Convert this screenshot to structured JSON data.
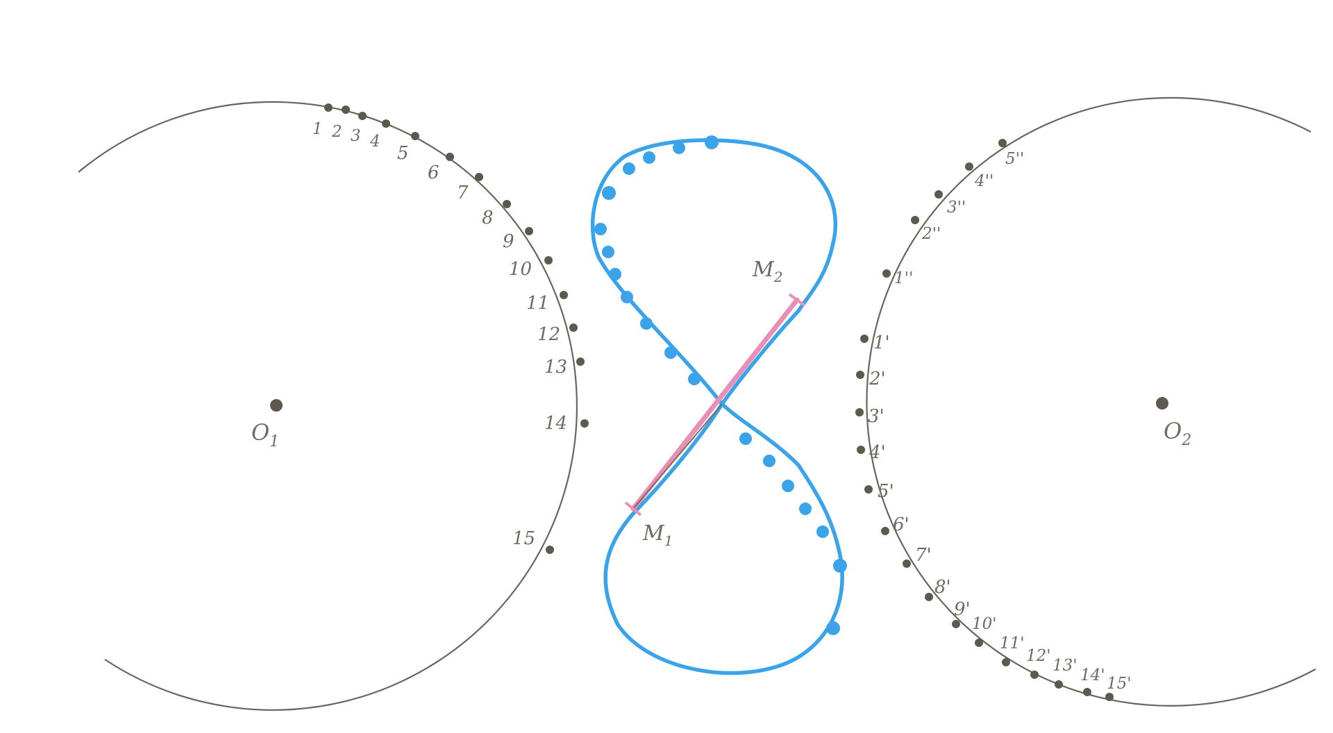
{
  "colors": {
    "circle": "#6a645a",
    "point": "#5e594f",
    "label": "#6f6a60",
    "curve": "#3aa3ea",
    "rod": "#e98fb7",
    "rod_core": "#7d6a5a"
  },
  "centers": {
    "o1": "O",
    "o1_sub": "1",
    "o2": "O",
    "o2_sub": "2"
  },
  "rod_ends": {
    "m1": "M",
    "m1_sub": "1",
    "m2": "M",
    "m2_sub": "2"
  },
  "left_points": [
    "1",
    "2",
    "3",
    "4",
    "5",
    "6",
    "7",
    "8",
    "9",
    "10",
    "11",
    "12",
    "13",
    "14",
    "15"
  ],
  "right_points_lower": [
    "1'",
    "2'",
    "3'",
    "4'",
    "5'",
    "6'",
    "7'",
    "8'",
    "9'",
    "10'",
    "11'",
    "12'",
    "13'",
    "14'",
    "15'"
  ],
  "right_points_upper": [
    "1''",
    "2''",
    "3''",
    "4''",
    "5''"
  ]
}
